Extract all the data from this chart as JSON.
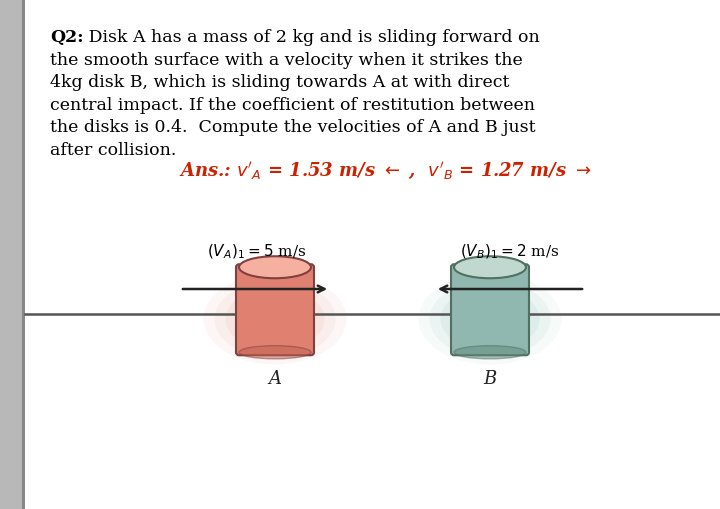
{
  "bg_outer": "#d8d8d8",
  "bg_left_strip": "#b0b0b0",
  "panel_color": "#ffffff",
  "title_bold": "Q2:",
  "title_rest": " Disk A has a mass of 2 kg and is sliding forward on\nthe smooth surface with a velocity when it strikes the\n4kg disk B, which is sliding towards A at with direct\ncentral impact. If the coefficient of restitution between\nthe disks is 0.4.  Compute the velocities of A and B just\nafter collision.",
  "ans_line1": "Ans.: $v'_A$ = 1.53 m/s",
  "ans_arrow_left": " ←",
  "ans_comma": " ,  ",
  "ans_line2": "$v'_B$ = 1.27 m/s",
  "ans_arrow_right": " →",
  "ans_color": "#cc2200",
  "label_A": "$(V_A)_1 = 5$ m/s",
  "label_B": "$(V_B)_1 = 2$ m/s",
  "disk_A_color_top": "#f5b0a0",
  "disk_A_color_body": "#e08070",
  "disk_A_color_edge": "#804040",
  "disk_B_color_top": "#c0d8d0",
  "disk_B_color_body": "#90b8b0",
  "disk_B_color_edge": "#507060",
  "glow_A_color": "#f0c0b0",
  "glow_B_color": "#c8e0d8",
  "surface_line_color": "#555555",
  "arrow_color": "#222222",
  "name_color": "#222222",
  "font_size_body": 12.5,
  "font_size_ans": 13.0,
  "font_size_label": 11.0,
  "font_size_name": 13.0
}
